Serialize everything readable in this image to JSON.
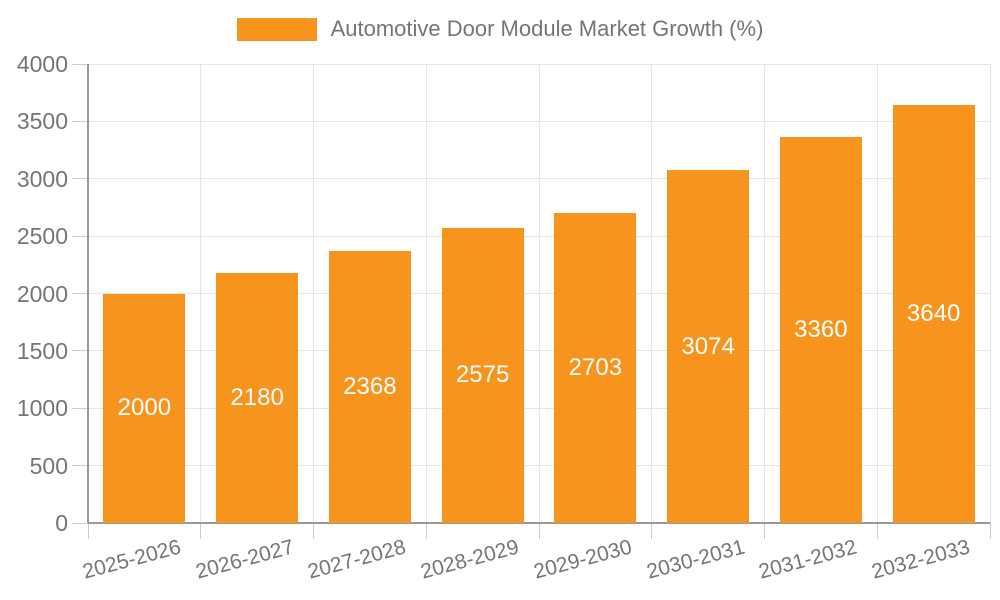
{
  "chart_data": {
    "type": "bar",
    "title": "Automotive Door Module Market Growth (%)",
    "categories": [
      "2025-2026",
      "2026-2027",
      "2027-2028",
      "2028-2029",
      "2029-2030",
      "2030-2031",
      "2031-2032",
      "2032-2033"
    ],
    "values": [
      2000,
      2180,
      2368,
      2575,
      2703,
      3074,
      3360,
      3640
    ],
    "xlabel": "",
    "ylabel": "",
    "ylim": [
      0,
      4000
    ],
    "yticks": [
      0,
      500,
      1000,
      1500,
      2000,
      2500,
      3000,
      3500,
      4000
    ],
    "grid": true,
    "legend_position": "top",
    "value_labels_inside_bars": true,
    "xlabel_rotation_deg": -15
  },
  "colors": {
    "bar": "#F7941E",
    "grid": "#E5E5E5",
    "tick": "#CCCCCC",
    "axis": "#999999",
    "text": "#757575",
    "value_text": "#FFFFFF",
    "background": "#FFFFFF"
  }
}
